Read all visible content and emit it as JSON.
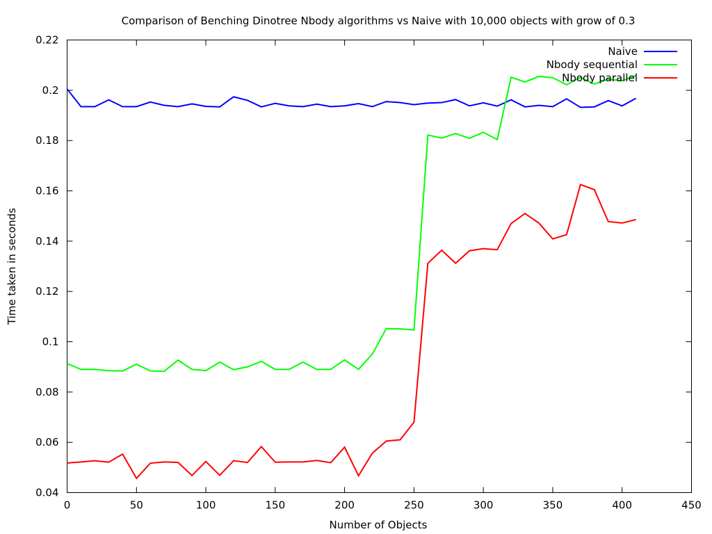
{
  "chart_data": {
    "type": "line",
    "title": "Comparison of Benching Dinotree Nbody algorithms vs Naive with 10,000 objects with grow of 0.3",
    "xlabel": "Number of Objects",
    "ylabel": "Time taken in seconds",
    "xlim": [
      0,
      450
    ],
    "ylim": [
      0.04,
      0.22
    ],
    "xticks": [
      0,
      50,
      100,
      150,
      200,
      250,
      300,
      350,
      400,
      450
    ],
    "xtick_labels": [
      "0",
      "50",
      "100",
      "150",
      "200",
      "250",
      "300",
      "350",
      "400",
      "450"
    ],
    "yticks": [
      0.04,
      0.06,
      0.08,
      0.1,
      0.12,
      0.14,
      0.16,
      0.18,
      0.2,
      0.22
    ],
    "ytick_labels": [
      "0.04",
      "0.06",
      "0.08",
      "0.1",
      "0.12",
      "0.14",
      "0.16",
      "0.18",
      "0.2",
      "0.22"
    ],
    "grid": false,
    "legend_position": "top-right",
    "x": [
      0,
      10,
      20,
      30,
      40,
      50,
      60,
      70,
      80,
      90,
      100,
      110,
      120,
      130,
      140,
      150,
      160,
      170,
      180,
      190,
      200,
      210,
      220,
      230,
      240,
      250,
      260,
      270,
      280,
      290,
      300,
      310,
      320,
      330,
      340,
      350,
      360,
      370,
      380,
      390,
      400,
      410
    ],
    "series": [
      {
        "name": "Naive",
        "color": "#0000ff",
        "values": [
          0.2005,
          0.1935,
          0.1935,
          0.1962,
          0.1935,
          0.1935,
          0.1953,
          0.194,
          0.1935,
          0.1946,
          0.1936,
          0.1934,
          0.1974,
          0.196,
          0.1934,
          0.1948,
          0.1938,
          0.1935,
          0.1945,
          0.1935,
          0.1938,
          0.1947,
          0.1935,
          0.1955,
          0.1951,
          0.1943,
          0.1949,
          0.1951,
          0.1963,
          0.1938,
          0.195,
          0.1937,
          0.1962,
          0.1934,
          0.194,
          0.1935,
          0.1966,
          0.1932,
          0.1934,
          0.1959,
          0.1938,
          0.1968
        ]
      },
      {
        "name": "Nbody sequential",
        "color": "#00ff00",
        "values": [
          0.0913,
          0.089,
          0.089,
          0.0885,
          0.0884,
          0.0911,
          0.0884,
          0.0883,
          0.0927,
          0.089,
          0.0885,
          0.0919,
          0.0889,
          0.09,
          0.0922,
          0.089,
          0.089,
          0.0919,
          0.089,
          0.089,
          0.0928,
          0.089,
          0.0951,
          0.1052,
          0.1051,
          0.1047,
          0.1822,
          0.181,
          0.1828,
          0.1809,
          0.1833,
          0.1804,
          0.2052,
          0.2033,
          0.2055,
          0.205,
          0.2022,
          0.2051,
          0.2025,
          0.2044,
          0.2038,
          0.2058
        ]
      },
      {
        "name": "Nbody parallel",
        "color": "#ff0000",
        "values": [
          0.0518,
          0.0522,
          0.0527,
          0.0521,
          0.0553,
          0.0457,
          0.0517,
          0.0522,
          0.052,
          0.0468,
          0.0524,
          0.0469,
          0.0527,
          0.052,
          0.0583,
          0.0521,
          0.0522,
          0.0522,
          0.0528,
          0.0519,
          0.0581,
          0.0467,
          0.0557,
          0.0605,
          0.061,
          0.068,
          0.1312,
          0.1364,
          0.1312,
          0.1362,
          0.137,
          0.1366,
          0.147,
          0.151,
          0.1472,
          0.1409,
          0.1426,
          0.1625,
          0.1605,
          0.1478,
          0.1472,
          0.1486
        ]
      }
    ]
  }
}
